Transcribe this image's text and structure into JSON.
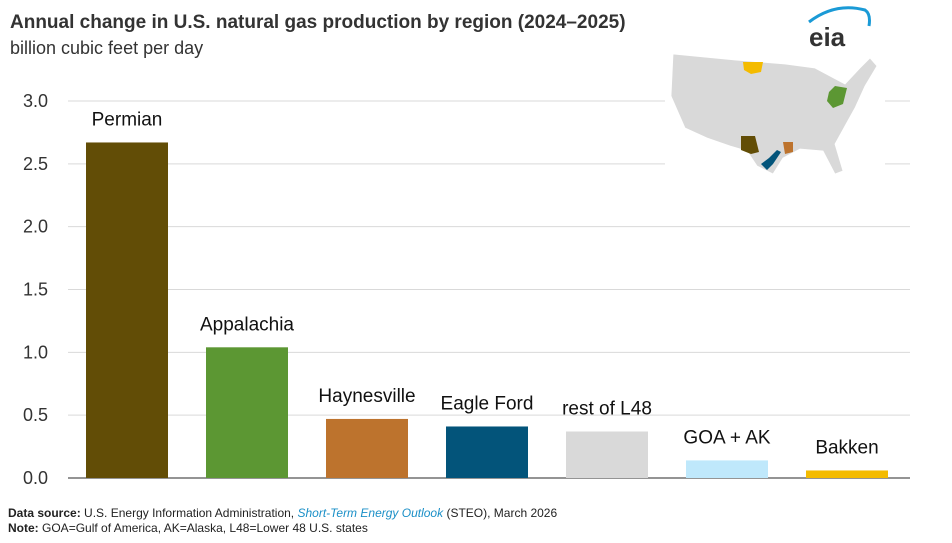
{
  "header": {
    "title": "Annual change in U.S. natural gas production by region (2024–2025)",
    "subtitle": "billion cubic feet per day",
    "logo": "eia"
  },
  "footer": {
    "source_label": "Data source:",
    "source_text": "U.S. Energy Information Administration,",
    "source_link": "Short-Term Energy Outlook",
    "source_tail": "(STEO), March 2026",
    "note_label": "Note:",
    "note_text": "GOA=Gulf of America, AK=Alaska, L48=Lower 48 U.S. states"
  },
  "chart_data": {
    "type": "bar",
    "title": "Annual change in U.S. natural gas production by region (2024–2025)",
    "ylabel": "billion cubic feet per day",
    "xlabel": "",
    "ylim": [
      0,
      3.0
    ],
    "yticks": [
      "0.0",
      "0.5",
      "1.0",
      "1.5",
      "2.0",
      "2.5",
      "3.0"
    ],
    "grid": true,
    "categories": [
      "Permian",
      "Appalachia",
      "Haynesville",
      "Eagle Ford",
      "rest of L48",
      "GOA + AK",
      "Bakken"
    ],
    "values": [
      2.67,
      1.04,
      0.47,
      0.41,
      0.37,
      0.14,
      0.06
    ],
    "colors": [
      "#624d06",
      "#5c9733",
      "#bd732d",
      "#03547a",
      "#d9d9d9",
      "#bfe8fb",
      "#f4bb00"
    ]
  }
}
